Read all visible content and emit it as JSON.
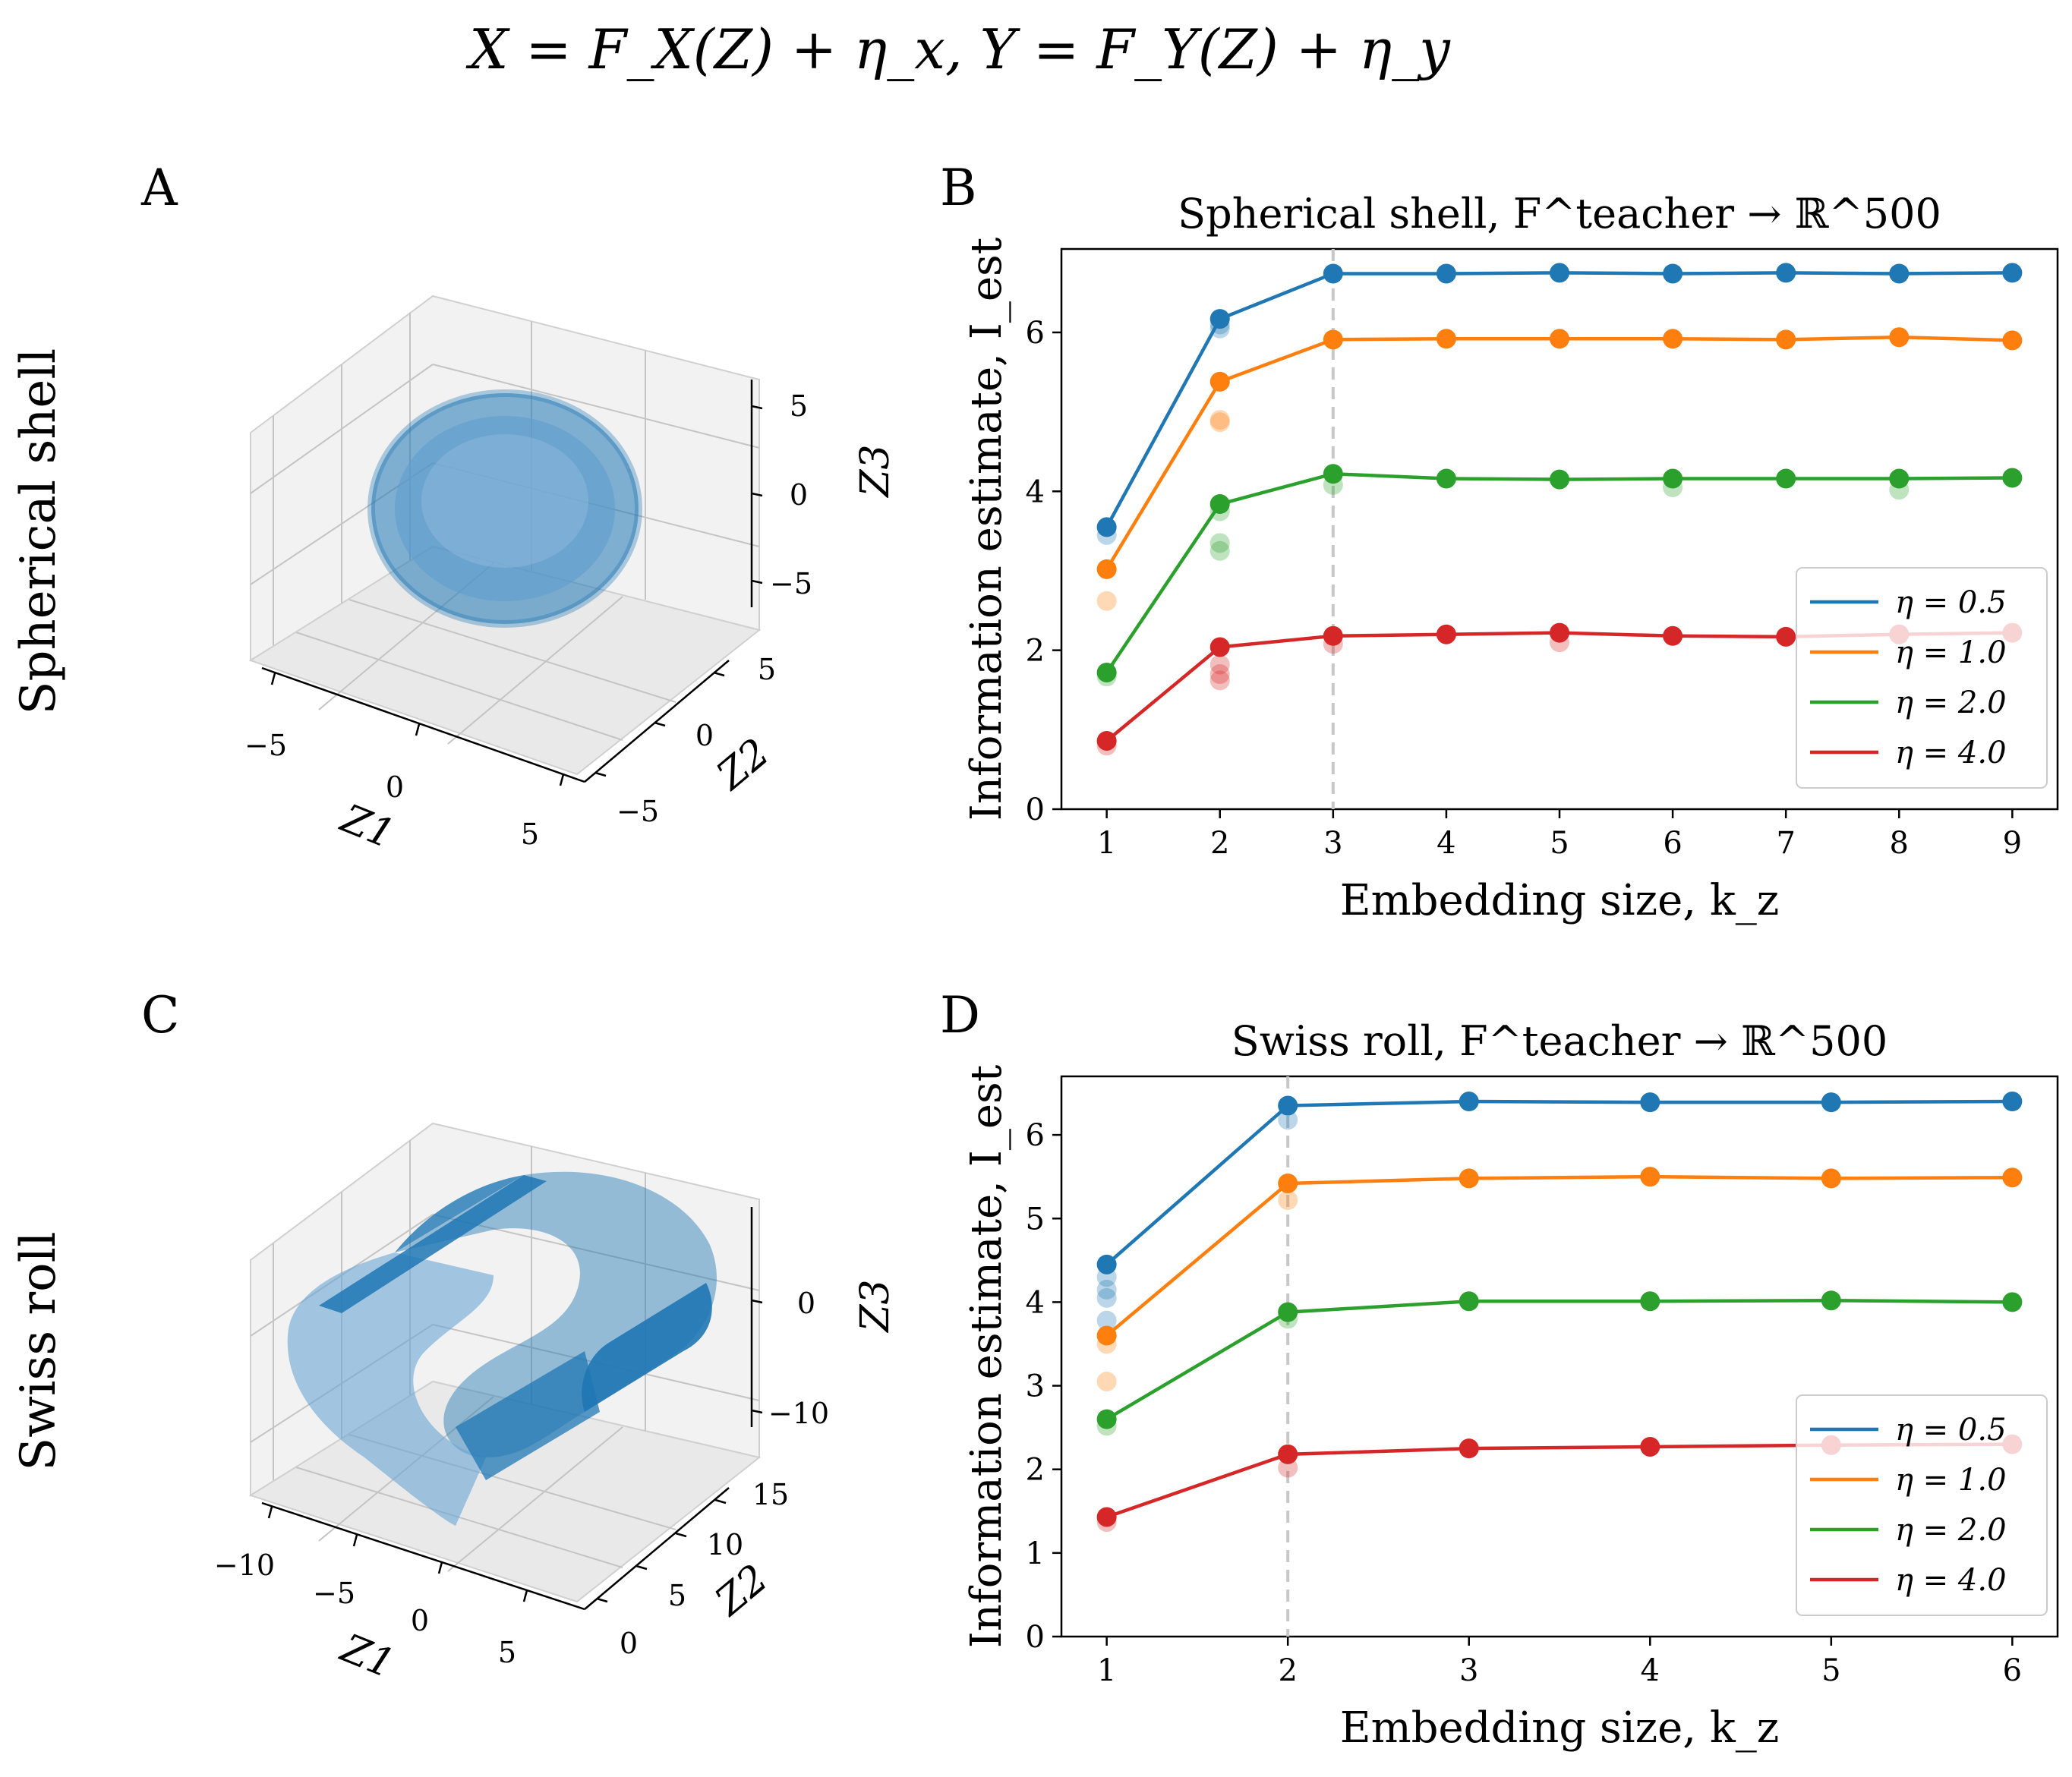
{
  "figure": {
    "suptitle": "X = F_X(Z) + η_x, Y = F_Y(Z) + η_y",
    "row_labels": [
      "Spherical shell",
      "Swiss roll"
    ],
    "panel_letters": [
      "A",
      "B",
      "C",
      "D"
    ]
  },
  "chart_data": [
    {
      "panel": "A",
      "type": "scatter",
      "title": "",
      "projection": "3d",
      "shape": "spherical shell",
      "xlabel": "Z1",
      "ylabel": "Z2",
      "zlabel": "Z3",
      "x_ticks": [
        "−5",
        "0",
        "5"
      ],
      "y_ticks": [
        "−5",
        "0",
        "5"
      ],
      "z_ticks": [
        "5",
        "0",
        "−5"
      ],
      "color": "#1f77b4"
    },
    {
      "panel": "B",
      "type": "line",
      "title": "Spherical shell, F^teacher → ℝ^500",
      "xlabel": "Embedding size, k_z",
      "ylabel": "Information estimate, I_est",
      "x": [
        1,
        2,
        3,
        4,
        5,
        6,
        7,
        8,
        9
      ],
      "xlim": [
        0.6,
        9.4
      ],
      "ylim": [
        0,
        7.05
      ],
      "yticks": [
        0,
        2,
        4,
        6
      ],
      "dashed_vline_x": 3,
      "legend_position": "lower-right",
      "series": [
        {
          "name": "η = 0.5",
          "color": "#1f77b4",
          "values": [
            3.55,
            6.17,
            6.74,
            6.74,
            6.75,
            6.74,
            6.75,
            6.74,
            6.75
          ],
          "scatter_extra": [
            [
              1,
              3.45
            ],
            [
              2,
              6.05
            ],
            [
              2,
              6.1
            ]
          ]
        },
        {
          "name": "η = 1.0",
          "color": "#ff7f0e",
          "values": [
            3.02,
            5.38,
            5.91,
            5.92,
            5.92,
            5.92,
            5.91,
            5.94,
            5.9
          ],
          "scatter_extra": [
            [
              1,
              2.62
            ],
            [
              2,
              4.87
            ],
            [
              2,
              4.9
            ]
          ]
        },
        {
          "name": "η = 2.0",
          "color": "#2ca02c",
          "values": [
            1.72,
            3.84,
            4.22,
            4.16,
            4.15,
            4.16,
            4.16,
            4.16,
            4.17
          ],
          "scatter_extra": [
            [
              1,
              1.67
            ],
            [
              2,
              3.25
            ],
            [
              2,
              3.35
            ],
            [
              2,
              3.75
            ],
            [
              3,
              4.08
            ],
            [
              6,
              4.05
            ],
            [
              8,
              4.02
            ]
          ]
        },
        {
          "name": "η = 4.0",
          "color": "#d62728",
          "values": [
            0.86,
            2.04,
            2.18,
            2.2,
            2.22,
            2.18,
            2.17,
            2.2,
            2.22
          ],
          "scatter_extra": [
            [
              1,
              0.8
            ],
            [
              2,
              1.62
            ],
            [
              2,
              1.7
            ],
            [
              2,
              1.82
            ],
            [
              3,
              2.08
            ],
            [
              5,
              2.1
            ]
          ]
        }
      ]
    },
    {
      "panel": "C",
      "type": "scatter",
      "title": "",
      "projection": "3d",
      "shape": "swiss roll",
      "xlabel": "Z1",
      "ylabel": "Z2",
      "zlabel": "Z3",
      "x_ticks": [
        "−10",
        "−5",
        "0",
        "5"
      ],
      "y_ticks": [
        "0",
        "5",
        "10",
        "15"
      ],
      "z_ticks": [
        "0",
        "−10"
      ],
      "color": "#1f77b4"
    },
    {
      "panel": "D",
      "type": "line",
      "title": "Swiss roll, F^teacher → ℝ^500",
      "xlabel": "Embedding size, k_z",
      "ylabel": "Information estimate, I_est",
      "x": [
        1,
        2,
        3,
        4,
        5,
        6
      ],
      "xlim": [
        0.75,
        6.25
      ],
      "ylim": [
        0,
        6.7
      ],
      "yticks": [
        0,
        1,
        2,
        3,
        4,
        5,
        6
      ],
      "dashed_vline_x": 2,
      "legend_position": "lower-right",
      "series": [
        {
          "name": "η = 0.5",
          "color": "#1f77b4",
          "values": [
            4.45,
            6.35,
            6.4,
            6.39,
            6.39,
            6.4
          ],
          "scatter_extra": [
            [
              1,
              4.3
            ],
            [
              1,
              4.15
            ],
            [
              1,
              4.05
            ],
            [
              1,
              3.78
            ],
            [
              2,
              6.18
            ]
          ]
        },
        {
          "name": "η = 1.0",
          "color": "#ff7f0e",
          "values": [
            3.6,
            5.42,
            5.48,
            5.5,
            5.48,
            5.49
          ],
          "scatter_extra": [
            [
              1,
              3.5
            ],
            [
              1,
              3.05
            ],
            [
              2,
              5.22
            ]
          ]
        },
        {
          "name": "η = 2.0",
          "color": "#2ca02c",
          "values": [
            2.6,
            3.88,
            4.01,
            4.01,
            4.02,
            4.0
          ],
          "scatter_extra": [
            [
              1,
              2.52
            ],
            [
              2,
              3.8
            ]
          ]
        },
        {
          "name": "η = 4.0",
          "color": "#d62728",
          "values": [
            1.43,
            2.18,
            2.25,
            2.27,
            2.29,
            2.3
          ],
          "scatter_extra": [
            [
              1,
              1.37
            ],
            [
              2,
              2.02
            ]
          ]
        }
      ]
    }
  ]
}
